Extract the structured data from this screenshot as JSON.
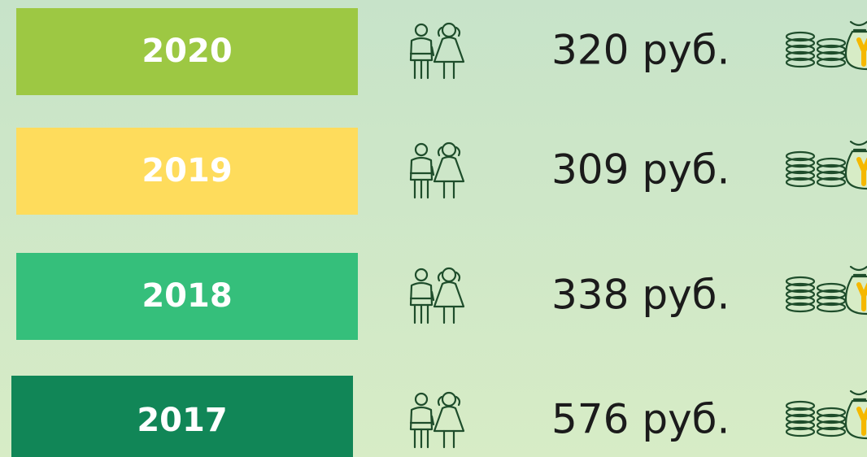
{
  "rows": [
    {
      "year": "2020",
      "amount": "320 руб.",
      "color": "#9dc843"
    },
    {
      "year": "2019",
      "amount": "309 руб.",
      "color": "#fedc5c"
    },
    {
      "year": "2018",
      "amount": "338 руб.",
      "color": "#35bf7b"
    },
    {
      "year": "2017",
      "amount": "576 руб.",
      "color": "#118657"
    }
  ]
}
